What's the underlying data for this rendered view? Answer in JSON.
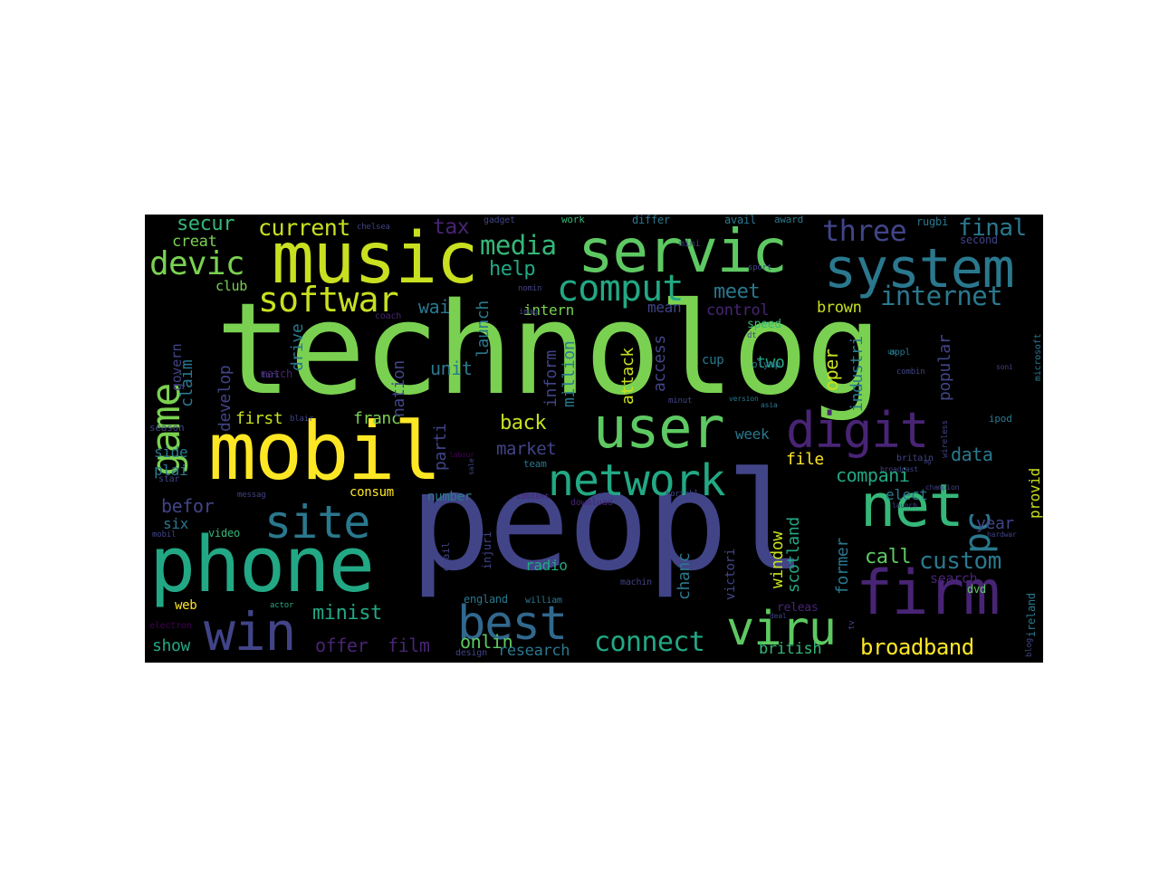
{
  "palette": {
    "yg": "#c8e020",
    "gr": "#7ad151",
    "tq": "#22a884",
    "tl": "#2a788e",
    "bl": "#414487",
    "pu": "#482475",
    "dk": "#440154",
    "yl": "#fde725",
    "lg": "#5ec962",
    "sg": "#35b779",
    "sb": "#31688e"
  },
  "words": [
    {
      "t": "technolog",
      "c": "gr"
    },
    {
      "t": "peopl",
      "c": "bl"
    },
    {
      "t": "mobil",
      "c": "yl"
    },
    {
      "t": "music",
      "c": "yg"
    },
    {
      "t": "phone",
      "c": "tq"
    },
    {
      "t": "servic",
      "c": "lg"
    },
    {
      "t": "system",
      "c": "tl"
    },
    {
      "t": "user",
      "c": "lg"
    },
    {
      "t": "network",
      "c": "tq"
    },
    {
      "t": "firm",
      "c": "pu"
    },
    {
      "t": "net",
      "c": "sg"
    },
    {
      "t": "digit",
      "c": "pu"
    },
    {
      "t": "best",
      "c": "sb"
    },
    {
      "t": "win",
      "c": "bl"
    },
    {
      "t": "viru",
      "c": "lg"
    },
    {
      "t": "site",
      "c": "tl"
    },
    {
      "t": "game",
      "c": "gr"
    },
    {
      "t": "softwar",
      "c": "yg"
    },
    {
      "t": "comput",
      "c": "tq"
    },
    {
      "t": "devic",
      "c": "gr"
    },
    {
      "t": "pc",
      "c": "tl"
    },
    {
      "t": "three",
      "c": "bl"
    },
    {
      "t": "internet",
      "c": "tl"
    },
    {
      "t": "media",
      "c": "sg"
    },
    {
      "t": "connect",
      "c": "tq"
    },
    {
      "t": "broadband",
      "c": "yl"
    },
    {
      "t": "custom",
      "c": "tl"
    },
    {
      "t": "final",
      "c": "tl"
    },
    {
      "t": "current",
      "c": "yg"
    },
    {
      "t": "secur",
      "c": "sg"
    },
    {
      "t": "tax",
      "c": "pu"
    },
    {
      "t": "creat",
      "c": "gr"
    },
    {
      "t": "help",
      "c": "tq"
    },
    {
      "t": "meet",
      "c": "tl"
    },
    {
      "t": "wai",
      "c": "tl"
    },
    {
      "t": "intern",
      "c": "gr"
    },
    {
      "t": "mean",
      "c": "bl"
    },
    {
      "t": "control",
      "c": "pu"
    },
    {
      "t": "brown",
      "c": "yg"
    },
    {
      "t": "club",
      "c": "gr"
    },
    {
      "t": "claim",
      "c": "tl"
    },
    {
      "t": "govern",
      "c": "bl"
    },
    {
      "t": "unit",
      "c": "tl"
    },
    {
      "t": "back",
      "c": "yg"
    },
    {
      "t": "first",
      "c": "yg"
    },
    {
      "t": "franc",
      "c": "gr"
    },
    {
      "t": "market",
      "c": "bl"
    },
    {
      "t": "side",
      "c": "tl"
    },
    {
      "t": "plai",
      "c": "tl"
    },
    {
      "t": "befor",
      "c": "bl"
    },
    {
      "t": "six",
      "c": "tl"
    },
    {
      "t": "video",
      "c": "sg"
    },
    {
      "t": "consum",
      "c": "yl"
    },
    {
      "t": "number",
      "c": "tl"
    },
    {
      "t": "data",
      "c": "tl"
    },
    {
      "t": "compani",
      "c": "tq"
    },
    {
      "t": "elect",
      "c": "tl"
    },
    {
      "t": "year",
      "c": "bl"
    },
    {
      "t": "call",
      "c": "lg"
    },
    {
      "t": "file",
      "c": "yl"
    },
    {
      "t": "week",
      "c": "tl"
    },
    {
      "t": "two",
      "c": "tq"
    },
    {
      "t": "radio",
      "c": "tq"
    },
    {
      "t": "minist",
      "c": "tq"
    },
    {
      "t": "onlin",
      "c": "lg"
    },
    {
      "t": "offer",
      "c": "pu"
    },
    {
      "t": "film",
      "c": "pu"
    },
    {
      "t": "show",
      "c": "tq"
    },
    {
      "t": "research",
      "c": "tl"
    },
    {
      "t": "british",
      "c": "sg"
    },
    {
      "t": "web",
      "c": "yl"
    },
    {
      "t": "search",
      "c": "pu"
    },
    {
      "t": "dvd",
      "c": "lg"
    },
    {
      "t": "releas",
      "c": "pu"
    },
    {
      "t": "speed",
      "c": "sg"
    },
    {
      "t": "cup",
      "c": "tl"
    },
    {
      "t": "gadget",
      "c": "bl"
    },
    {
      "t": "work",
      "c": "sg"
    },
    {
      "t": "differ",
      "c": "tl"
    },
    {
      "t": "avail",
      "c": "tl"
    },
    {
      "t": "award",
      "c": "tl"
    },
    {
      "t": "rugbi",
      "c": "tl"
    },
    {
      "t": "second",
      "c": "bl"
    },
    {
      "t": "match",
      "c": "pu"
    },
    {
      "t": "season",
      "c": "bl"
    },
    {
      "t": "team",
      "c": "tl"
    },
    {
      "t": "star",
      "c": "bl"
    },
    {
      "t": "actor",
      "c": "tq"
    },
    {
      "t": "coach",
      "c": "pu"
    },
    {
      "t": "drive",
      "c": "tl"
    },
    {
      "t": "develop",
      "c": "bl"
    },
    {
      "t": "nation",
      "c": "bl"
    },
    {
      "t": "parti",
      "c": "bl"
    },
    {
      "t": "inform",
      "c": "bl"
    },
    {
      "t": "million",
      "c": "tl"
    },
    {
      "t": "attack",
      "c": "yg"
    },
    {
      "t": "access",
      "c": "bl"
    },
    {
      "t": "launch",
      "c": "tl"
    },
    {
      "t": "injuri",
      "c": "bl"
    },
    {
      "t": "window",
      "c": "yg"
    },
    {
      "t": "scotland",
      "c": "tq"
    },
    {
      "t": "former",
      "c": "tl"
    },
    {
      "t": "oper",
      "c": "yg"
    },
    {
      "t": "industri",
      "c": "tl"
    },
    {
      "t": "popular",
      "c": "bl"
    },
    {
      "t": "provid",
      "c": "yg"
    },
    {
      "t": "chanc",
      "c": "tl"
    },
    {
      "t": "victori",
      "c": "bl"
    },
    {
      "t": "appl",
      "c": "tl"
    },
    {
      "t": "olymp",
      "c": "tl"
    },
    {
      "t": "email",
      "c": "bl"
    },
    {
      "t": "england",
      "c": "tl"
    },
    {
      "t": "william",
      "c": "tl"
    },
    {
      "t": "britain",
      "c": "bl"
    },
    {
      "t": "ipod",
      "c": "tl"
    },
    {
      "t": "microsoft",
      "c": "tl"
    },
    {
      "t": "design",
      "c": "bl"
    },
    {
      "t": "download",
      "c": "pu"
    },
    {
      "t": "content",
      "c": "pu"
    },
    {
      "t": "electron",
      "c": "dk"
    },
    {
      "t": "ireland",
      "c": "tl"
    },
    {
      "t": "mini",
      "c": "bl"
    },
    {
      "t": "nomin",
      "c": "bl"
    },
    {
      "t": "chelsea",
      "c": "bl"
    },
    {
      "t": "messag",
      "c": "bl"
    },
    {
      "t": "wireless",
      "c": "bl"
    },
    {
      "t": "machin",
      "c": "bl"
    },
    {
      "t": "sport",
      "c": "bl"
    },
    {
      "t": "dt",
      "c": "bl"
    },
    {
      "t": "us",
      "c": "tl"
    },
    {
      "t": "combin",
      "c": "bl"
    },
    {
      "t": "soni",
      "c": "bl"
    },
    {
      "t": "imag",
      "c": "bl"
    },
    {
      "t": "tori",
      "c": "bl"
    },
    {
      "t": "blair",
      "c": "bl"
    },
    {
      "t": "minut",
      "c": "bl"
    },
    {
      "t": "version",
      "c": "tl"
    },
    {
      "t": "tv",
      "c": "bl"
    },
    {
      "t": "mobil",
      "c": "bl"
    },
    {
      "t": "blog",
      "c": "bl"
    },
    {
      "t": "labour",
      "c": "dk"
    },
    {
      "t": "portabl",
      "c": "bl"
    },
    {
      "t": "sale",
      "c": "bl"
    },
    {
      "t": "broadcast",
      "c": "bl"
    },
    {
      "t": "champion",
      "c": "bl"
    },
    {
      "t": "launch",
      "c": "bl"
    },
    {
      "t": "asia",
      "c": "tl"
    },
    {
      "t": "hardwar",
      "c": "bl"
    },
    {
      "t": "deal",
      "c": "bl"
    },
    {
      "t": "ag",
      "c": "bl"
    },
    {
      "t": "player",
      "c": "bl"
    },
    {
      "t": "europ",
      "c": "bl"
    }
  ]
}
